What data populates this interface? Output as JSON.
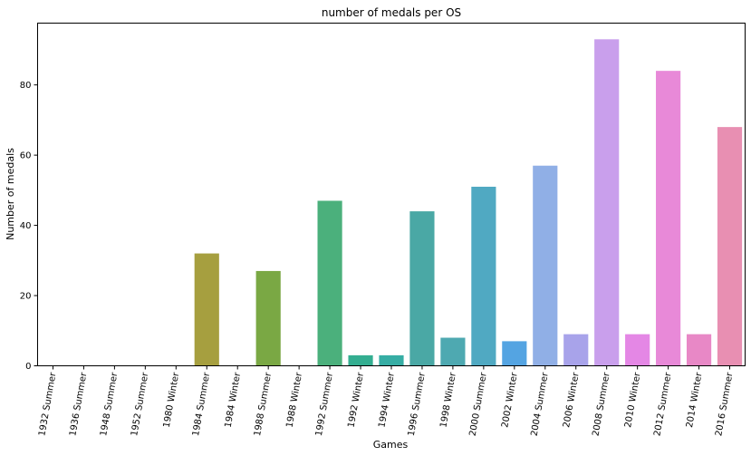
{
  "chart_data": {
    "type": "bar",
    "title": "number of medals per OS",
    "xlabel": "Games",
    "ylabel": "Number of medals",
    "categories": [
      "1932 Summer",
      "1936 Summer",
      "1948 Summer",
      "1952 Summer",
      "1980 Winter",
      "1984 Summer",
      "1984 Winter",
      "1988 Summer",
      "1988 Winter",
      "1992 Summer",
      "1992 Winter",
      "1994 Winter",
      "1996 Summer",
      "1998 Winter",
      "2000 Summer",
      "2002 Winter",
      "2004 Summer",
      "2006 Winter",
      "2008 Summer",
      "2010 Winter",
      "2012 Summer",
      "2014 Winter",
      "2016 Summer"
    ],
    "values": [
      0,
      0,
      0,
      0,
      0,
      32,
      0,
      27,
      0,
      47,
      3,
      3,
      44,
      8,
      51,
      7,
      57,
      9,
      93,
      9,
      84,
      9,
      68
    ],
    "colors": [
      "#f77189",
      "#f7754f",
      "#e1832f",
      "#ce8f31",
      "#bb9832",
      "#a69f3f",
      "#91a532",
      "#7aa844",
      "#4fb031",
      "#4bb07c",
      "#34ae91",
      "#36ada4",
      "#4aa8a5",
      "#4ea9b1",
      "#50a9c2",
      "#54a4e2",
      "#90afe6",
      "#a8a3ea",
      "#c99fec",
      "#e487e5",
      "#e889d8",
      "#e888c6",
      "#e88fb2"
    ],
    "ylim": [
      0,
      97.6
    ],
    "yticks": [
      0,
      20,
      40,
      60,
      80
    ],
    "grid": false,
    "legend": "none"
  }
}
